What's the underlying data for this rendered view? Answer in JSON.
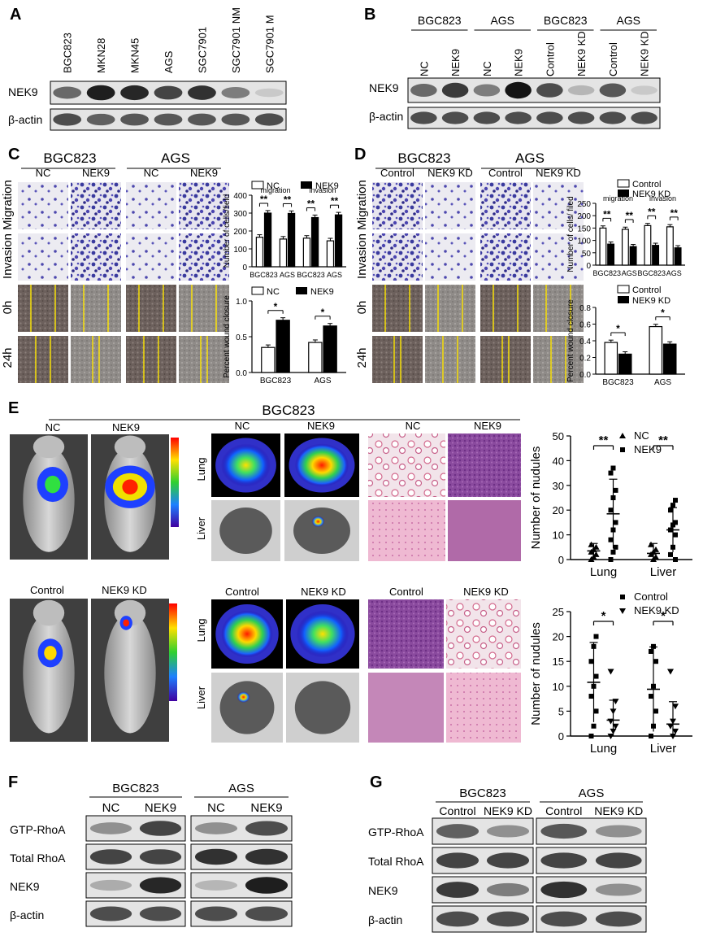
{
  "panel_A": {
    "letter": "A",
    "lanes": [
      "BGC823",
      "MKN28",
      "MKN45",
      "AGS",
      "SGC7901",
      "SGC7901 NM",
      "SGC7901 M"
    ],
    "rows": [
      "NEK9",
      "β-actin"
    ]
  },
  "panel_B": {
    "letter": "B",
    "groups": [
      "BGC823",
      "AGS",
      "BGC823",
      "AGS"
    ],
    "lanes": [
      "NC",
      "NEK9",
      "NC",
      "NEK9",
      "Control",
      "NEK9 KD",
      "Control",
      "NEK9 KD"
    ],
    "rows": [
      "NEK9",
      "β-actin"
    ]
  },
  "panel_C": {
    "letter": "C",
    "groups": [
      "BGC823",
      "AGS"
    ],
    "cols": [
      "NC",
      "NEK9",
      "NC",
      "NEK9"
    ],
    "rows": [
      "Migration",
      "Invasion",
      "0h",
      "24h"
    ],
    "legend": [
      "NC",
      "NEK9"
    ],
    "sub_migration": "migration",
    "sub_invasion": "invasion"
  },
  "panel_D": {
    "letter": "D",
    "groups": [
      "BGC823",
      "AGS"
    ],
    "cols": [
      "Control",
      "NEK9 KD",
      "Control",
      "NEK9 KD"
    ],
    "rows": [
      "Migration",
      "Invasion",
      "0h",
      "24h"
    ],
    "legend": [
      "Control",
      "NEK9 KD"
    ],
    "sub_migration": "migration",
    "sub_invasion": "invasion"
  },
  "panel_E": {
    "letter": "E",
    "title": "BGC823",
    "mouse_labels_top": [
      "NC",
      "NEK9"
    ],
    "mouse_labels_bottom": [
      "Control",
      "NEK9 KD"
    ],
    "organ_labels_top": [
      "NC",
      "NEK9",
      "NC",
      "NEK9"
    ],
    "organ_labels_bottom": [
      "Control",
      "NEK9 KD",
      "Control",
      "NEK9 KD"
    ],
    "organs": [
      "Lung",
      "Liver"
    ]
  },
  "panel_F": {
    "letter": "F",
    "groups": [
      "BGC823",
      "AGS"
    ],
    "lanes": [
      "NC",
      "NEK9",
      "NC",
      "NEK9"
    ],
    "rows": [
      "GTP-RhoA",
      "Total RhoA",
      "NEK9",
      "β-actin"
    ]
  },
  "panel_G": {
    "letter": "G",
    "groups": [
      "BGC823",
      "AGS"
    ],
    "lanes": [
      "Control",
      "NEK9 KD",
      "Control",
      "NEK9 KD"
    ],
    "rows": [
      "GTP-RhoA",
      "Total RhoA",
      "NEK9",
      "β-actin"
    ]
  },
  "chart_data": [
    {
      "id": "C_cells",
      "type": "bar",
      "ylabel": "Number of cells/field",
      "ylim": [
        0,
        400
      ],
      "yticks": [
        0,
        100,
        200,
        300,
        400
      ],
      "categories": [
        "BGC823",
        "AGS",
        "BGC823",
        "AGS"
      ],
      "series": [
        {
          "name": "NC",
          "values": [
            165,
            155,
            160,
            145
          ]
        },
        {
          "name": "NEK9",
          "values": [
            300,
            298,
            275,
            290
          ]
        }
      ],
      "significance": [
        "**",
        "**",
        "**",
        "**"
      ]
    },
    {
      "id": "C_wound",
      "type": "bar",
      "ylabel": "Percent wound closure",
      "ylim": [
        0,
        1.0
      ],
      "yticks": [
        "0.0",
        "0.5",
        "1.0"
      ],
      "categories": [
        "BGC823",
        "AGS"
      ],
      "series": [
        {
          "name": "NC",
          "values": [
            0.35,
            0.42
          ]
        },
        {
          "name": "NEK9",
          "values": [
            0.73,
            0.65
          ]
        }
      ],
      "significance": [
        "*",
        "*"
      ]
    },
    {
      "id": "D_cells",
      "type": "bar",
      "ylabel": "Number of cells/ filed",
      "ylim": [
        0,
        250
      ],
      "yticks": [
        0,
        50,
        100,
        150,
        200,
        250
      ],
      "categories": [
        "BGC823",
        "AGS",
        "BGC823",
        "AGS"
      ],
      "series": [
        {
          "name": "Control",
          "values": [
            150,
            145,
            160,
            155
          ]
        },
        {
          "name": "NEK9 KD",
          "values": [
            85,
            75,
            80,
            70
          ]
        }
      ],
      "significance": [
        "**",
        "**",
        "**",
        "**"
      ]
    },
    {
      "id": "D_wound",
      "type": "bar",
      "ylabel": "Percent wound closure",
      "ylim": [
        0,
        0.8
      ],
      "yticks": [
        "0.0",
        "0.2",
        "0.4",
        "0.6",
        "0.8"
      ],
      "categories": [
        "BGC823",
        "AGS"
      ],
      "series": [
        {
          "name": "Control",
          "values": [
            0.38,
            0.57
          ]
        },
        {
          "name": "NEK9 KD",
          "values": [
            0.24,
            0.36
          ]
        }
      ],
      "significance": [
        "*",
        "*"
      ]
    },
    {
      "id": "E_nodules_top",
      "type": "scatter",
      "ylabel": "Number of nudules",
      "ylim": [
        0,
        50
      ],
      "yticks": [
        0,
        10,
        20,
        30,
        40,
        50
      ],
      "categories": [
        "Lung",
        "Liver"
      ],
      "series": [
        {
          "name": "NC",
          "marker": "triangle",
          "points": [
            [
              0,
              0
            ],
            [
              0,
              1
            ],
            [
              0,
              2
            ],
            [
              0,
              3
            ],
            [
              0,
              4
            ],
            [
              0,
              5
            ],
            [
              0,
              6
            ],
            [
              1,
              0
            ],
            [
              1,
              1
            ],
            [
              1,
              2
            ],
            [
              1,
              3
            ],
            [
              1,
              4
            ],
            [
              1,
              6
            ]
          ],
          "mean": [
            3.5,
            2.5
          ],
          "sd": [
            3,
            4
          ]
        },
        {
          "name": "NEK9",
          "marker": "square",
          "points": [
            [
              0,
              0
            ],
            [
              0,
              3
            ],
            [
              0,
              5
            ],
            [
              0,
              8
            ],
            [
              0,
              12
            ],
            [
              0,
              15
            ],
            [
              0,
              20
            ],
            [
              0,
              25
            ],
            [
              0,
              28
            ],
            [
              0,
              35
            ],
            [
              0,
              37
            ],
            [
              1,
              0
            ],
            [
              1,
              2
            ],
            [
              1,
              5
            ],
            [
              1,
              10
            ],
            [
              1,
              12
            ],
            [
              1,
              14
            ],
            [
              1,
              15
            ],
            [
              1,
              20
            ],
            [
              1,
              22
            ],
            [
              1,
              24
            ]
          ],
          "mean": [
            18.5,
            12
          ],
          "sd": [
            14,
            9
          ]
        }
      ],
      "significance": [
        "**",
        "**"
      ]
    },
    {
      "id": "E_nodules_bottom",
      "type": "scatter",
      "ylabel": "Number of nudules",
      "ylim": [
        0,
        25
      ],
      "yticks": [
        0,
        5,
        10,
        15,
        20,
        25
      ],
      "categories": [
        "Lung",
        "Liver"
      ],
      "series": [
        {
          "name": "Control",
          "marker": "square",
          "points": [
            [
              0,
              0
            ],
            [
              0,
              2
            ],
            [
              0,
              5
            ],
            [
              0,
              8
            ],
            [
              0,
              10
            ],
            [
              0,
              12
            ],
            [
              0,
              15
            ],
            [
              0,
              18
            ],
            [
              0,
              20
            ],
            [
              1,
              0
            ],
            [
              1,
              2
            ],
            [
              1,
              5
            ],
            [
              1,
              8
            ],
            [
              1,
              10
            ],
            [
              1,
              15
            ],
            [
              1,
              17
            ],
            [
              1,
              18
            ]
          ],
          "mean": [
            10.8,
            9.4
          ],
          "sd": [
            8,
            8.5
          ]
        },
        {
          "name": "NEK9 KD",
          "marker": "triangle-down",
          "points": [
            [
              0,
              0
            ],
            [
              0,
              1
            ],
            [
              0,
              2
            ],
            [
              0,
              3
            ],
            [
              0,
              5
            ],
            [
              0,
              7
            ],
            [
              0,
              13
            ],
            [
              1,
              0
            ],
            [
              1,
              1
            ],
            [
              1,
              2
            ],
            [
              1,
              3
            ],
            [
              1,
              6
            ],
            [
              1,
              13
            ]
          ],
          "mean": [
            3.2,
            2.4
          ],
          "sd": [
            4,
            4.5
          ]
        }
      ],
      "significance": [
        "*",
        "*"
      ]
    }
  ]
}
